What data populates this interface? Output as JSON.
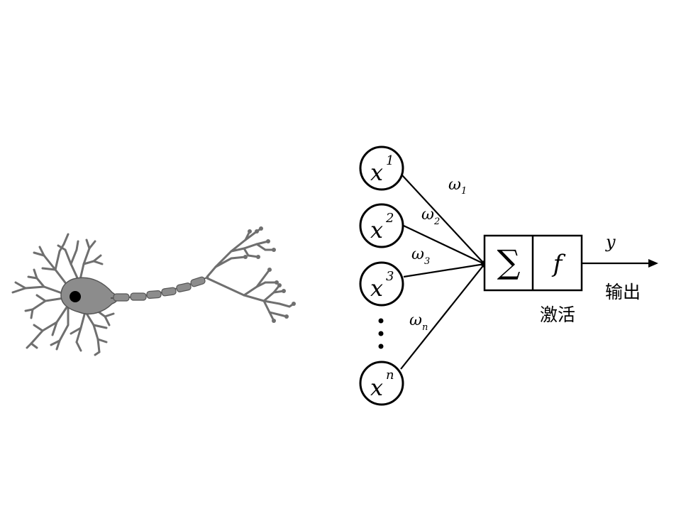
{
  "neuron_illustration": {
    "description_icon": "biological-neuron-icon",
    "colors": {
      "body": "#8c8c8c",
      "nucleus": "#000000",
      "outline": "#404040"
    }
  },
  "perceptron": {
    "inputs": [
      {
        "base": "x",
        "sup": "1"
      },
      {
        "base": "x",
        "sup": "2"
      },
      {
        "base": "x",
        "sup": "3"
      },
      {
        "base": "x",
        "sup": "n"
      }
    ],
    "weights": [
      {
        "base": "ω",
        "sub": "1"
      },
      {
        "base": "ω",
        "sub": "2"
      },
      {
        "base": "ω",
        "sub": "3"
      },
      {
        "base": "ω",
        "sub": "n"
      }
    ],
    "sum_symbol": "∑",
    "activation_symbol": "f",
    "activation_label": "激活",
    "output_symbol": "y",
    "output_label": "输出"
  }
}
